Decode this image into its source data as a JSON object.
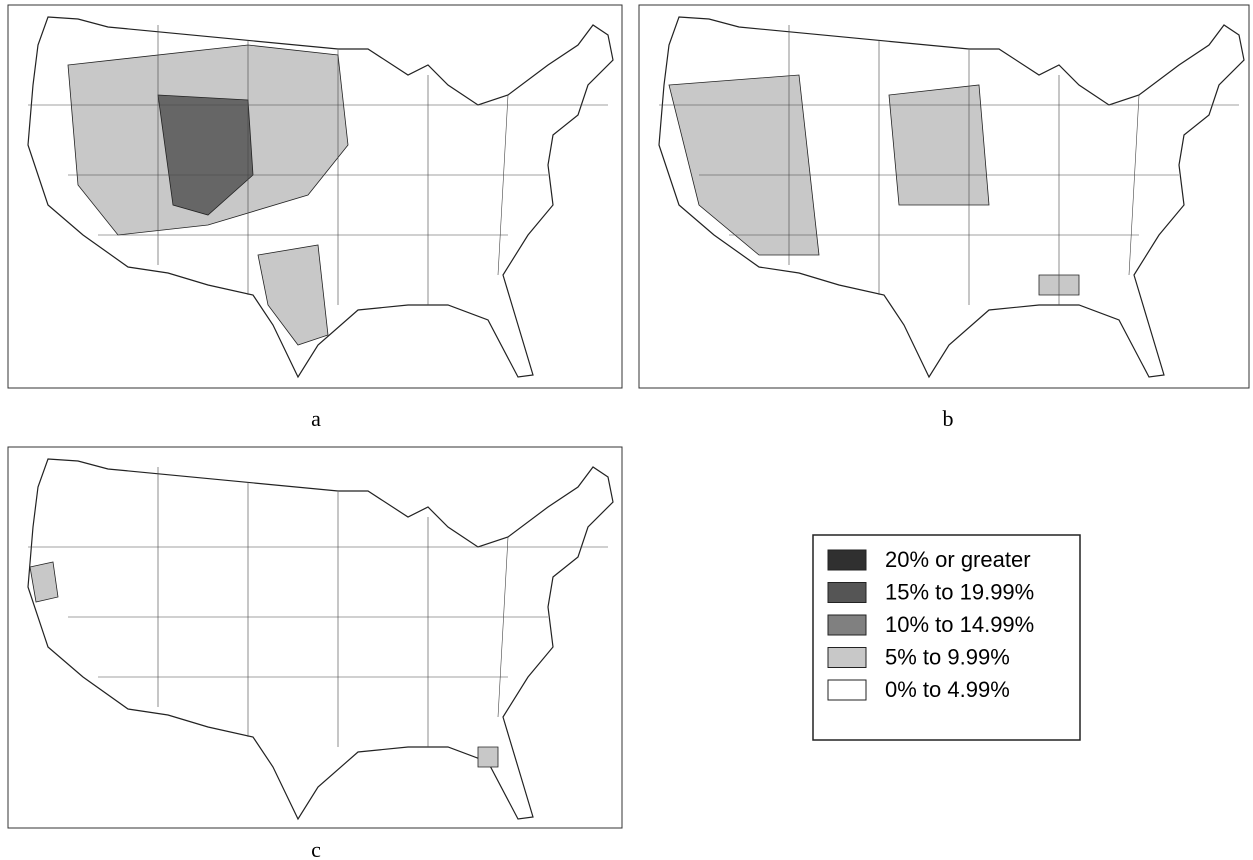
{
  "panels": [
    {
      "label": "a"
    },
    {
      "label": "b"
    },
    {
      "label": "c"
    }
  ],
  "legend": {
    "items": [
      {
        "label": "20% or greater",
        "color": "#303030"
      },
      {
        "label": "15% to 19.99%",
        "color": "#555555"
      },
      {
        "label": "10% to 14.99%",
        "color": "#808080"
      },
      {
        "label": "5% to 9.99%",
        "color": "#c8c8c8"
      },
      {
        "label": "0% to 4.99%",
        "color": "#ffffff"
      }
    ]
  }
}
